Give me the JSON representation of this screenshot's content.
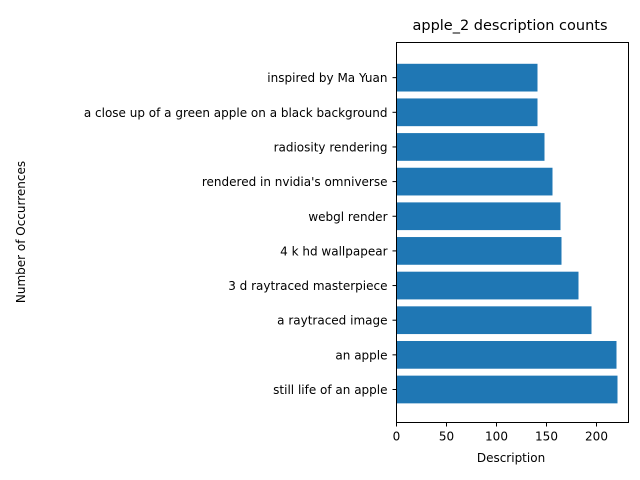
{
  "chart_data": {
    "type": "bar",
    "orientation": "horizontal",
    "title": "apple_2 description counts",
    "xlabel": "Description",
    "ylabel": "Number of Occurrences",
    "categories": [
      "still life of an apple",
      "an apple",
      "a raytraced image",
      "3 d raytraced masterpiece",
      "4 k hd wallpapear",
      "webgl render",
      "rendered in nvidia's omniverse",
      "radiosity rendering",
      "a close up of a green apple on a black background",
      "inspired by Ma Yuan"
    ],
    "values": [
      221,
      220,
      195,
      182,
      165,
      164,
      156,
      148,
      141,
      141
    ],
    "xlim": [
      0,
      232
    ],
    "xticks": [
      0,
      50,
      100,
      150,
      200
    ],
    "bar_color": "#1f77b4",
    "grid": false,
    "legend": "none"
  }
}
